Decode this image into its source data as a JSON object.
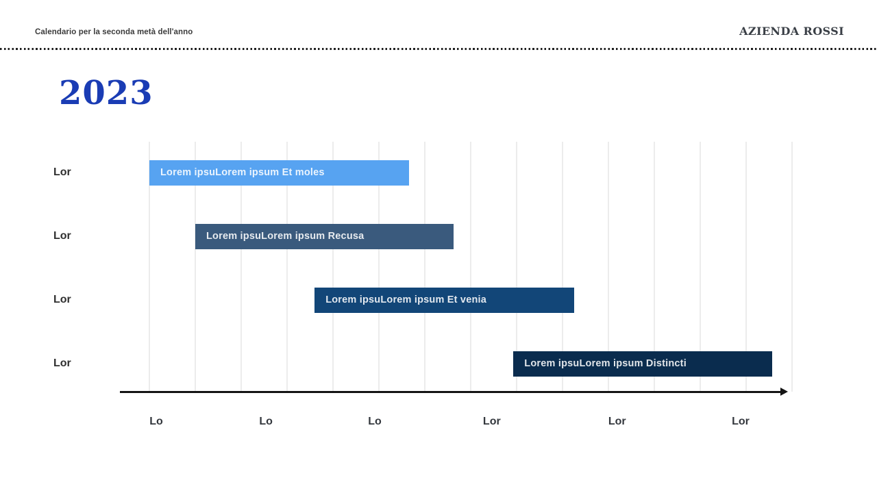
{
  "header": {
    "subtitle": "Calendario per la seconda metà dell'anno",
    "brand": "AZIENDA ROSSI"
  },
  "title": "2023",
  "chart_data": {
    "type": "bar",
    "variant": "gantt-timeline",
    "orientation": "horizontal",
    "title": "2023",
    "row_labels": [
      "Lor",
      "Lor",
      "Lor",
      "Lor"
    ],
    "bars": [
      {
        "row": "Lor",
        "label": "Lorem ipsuLorem ipsum Et moles",
        "start": 0.0,
        "end": 5.65,
        "color": "#57a3f1"
      },
      {
        "row": "Lor",
        "label": "Lorem ipsuLorem ipsum Recusa",
        "start": 1.0,
        "end": 6.62,
        "color": "#3a5a7d"
      },
      {
        "row": "Lor",
        "label": "Lorem ipsuLorem ipsum Et venia",
        "start": 3.6,
        "end": 9.25,
        "color": "#124678"
      },
      {
        "row": "Lor",
        "label": "Lorem ipsuLorem ipsum Distincti",
        "start": 7.93,
        "end": 13.57,
        "color": "#0a2c4e"
      }
    ],
    "x_axis": {
      "labels": [
        "Lo",
        "Lo",
        "Lo",
        "Lor",
        "Lor",
        "Lor"
      ],
      "label_positions_units": [
        0.15,
        2.54,
        4.91,
        7.46,
        10.19,
        12.88
      ],
      "range_units": [
        0,
        14
      ],
      "gridline_count": 15,
      "arrow": true
    },
    "grid_on": true,
    "legend": "none",
    "colors": {
      "gridline": "#ececec",
      "axis": "#141414",
      "bar_text": "rgba(255,255,255,0.88)",
      "row_label": "#2f2f2f",
      "axis_label": "#33373d",
      "title": "#1a3cb4"
    }
  }
}
